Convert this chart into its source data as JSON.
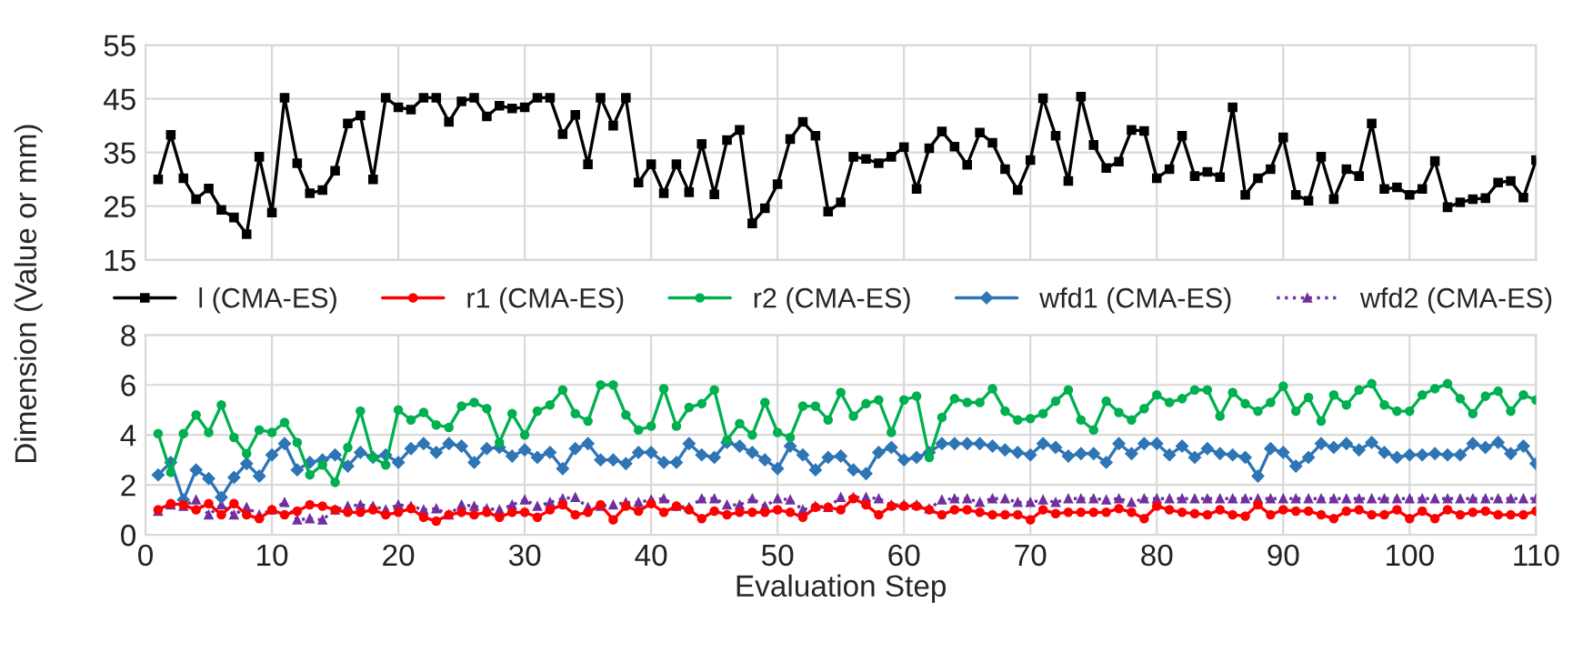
{
  "chart_data": [
    {
      "type": "line",
      "xlim": [
        0,
        110
      ],
      "xticks": [
        0,
        10,
        20,
        30,
        40,
        50,
        60,
        70,
        80,
        90,
        100,
        110
      ],
      "ylim": [
        15,
        55
      ],
      "yticks": [
        15,
        25,
        35,
        45,
        55
      ],
      "grid": true,
      "tick_labels": "y",
      "legend": "bottom",
      "x": [
        1,
        2,
        3,
        4,
        5,
        6,
        7,
        8,
        9,
        10,
        11,
        12,
        13,
        14,
        15,
        16,
        17,
        18,
        19,
        20,
        21,
        22,
        23,
        24,
        25,
        26,
        27,
        28,
        29,
        30,
        31,
        32,
        33,
        34,
        35,
        36,
        37,
        38,
        39,
        40,
        41,
        42,
        43,
        44,
        45,
        46,
        47,
        48,
        49,
        50,
        51,
        52,
        53,
        54,
        55,
        56,
        57,
        58,
        59,
        60,
        61,
        62,
        63,
        64,
        65,
        66,
        67,
        68,
        69,
        70,
        71,
        72,
        73,
        74,
        75,
        76,
        77,
        78,
        79,
        80,
        81,
        82,
        83,
        84,
        85,
        86,
        87,
        88,
        89,
        90,
        91,
        92,
        93,
        94,
        95,
        96,
        97,
        98,
        99,
        100,
        101,
        102,
        103,
        104,
        105,
        106,
        107,
        108,
        109,
        110
      ],
      "series": [
        {
          "name": "l (CMA-ES)",
          "color": "#000000",
          "marker": "square",
          "line_style": "solid",
          "values": [
            30,
            38.3,
            30.2,
            26.3,
            28.3,
            24.3,
            22.9,
            19.8,
            34.2,
            23.8,
            45.2,
            33,
            27.4,
            28,
            31.6,
            40.4,
            41.9,
            30,
            45.2,
            43.4,
            43,
            45.2,
            45.2,
            40.7,
            44.5,
            45.2,
            41.7,
            43.7,
            43.2,
            43.4,
            45.2,
            45.2,
            38.4,
            42,
            32.8,
            45.2,
            40,
            45.2,
            29.4,
            32.8,
            27.4,
            32.8,
            27.6,
            36.6,
            27.2,
            37.3,
            39.2,
            21.8,
            24.6,
            29.1,
            37.5,
            40.7,
            38.1,
            24,
            25.7,
            34.2,
            33.8,
            33,
            34.2,
            36,
            28.2,
            35.8,
            38.9,
            36.1,
            32.7,
            38.7,
            36.8,
            31.9,
            28,
            33.6,
            45.1,
            38.1,
            29.7,
            45.4,
            36.4,
            32.1,
            33.3,
            39.2,
            39,
            30.2,
            31.9,
            38.1,
            30.6,
            31.4,
            30.4,
            43.4,
            27.1,
            30.2,
            31.9,
            37.8,
            27.1,
            26,
            34.2,
            26.3,
            31.9,
            30.6,
            40.4,
            28.2,
            28.5,
            27.1,
            28.2,
            33.4,
            24.8,
            25.7,
            26.3,
            26.5,
            29.4,
            29.7,
            26.6,
            33.6
          ]
        }
      ]
    },
    {
      "type": "line",
      "xlabel": "Evaluation Step",
      "ylabel": "Dimension (Value or mm)",
      "xlim": [
        0,
        110
      ],
      "xticks": [
        0,
        10,
        20,
        30,
        40,
        50,
        60,
        70,
        80,
        90,
        100,
        110
      ],
      "ylim": [
        0,
        8
      ],
      "yticks": [
        0,
        2,
        4,
        6,
        8
      ],
      "grid": true,
      "legend": "top",
      "x": [
        1,
        2,
        3,
        4,
        5,
        6,
        7,
        8,
        9,
        10,
        11,
        12,
        13,
        14,
        15,
        16,
        17,
        18,
        19,
        20,
        21,
        22,
        23,
        24,
        25,
        26,
        27,
        28,
        29,
        30,
        31,
        32,
        33,
        34,
        35,
        36,
        37,
        38,
        39,
        40,
        41,
        42,
        43,
        44,
        45,
        46,
        47,
        48,
        49,
        50,
        51,
        52,
        53,
        54,
        55,
        56,
        57,
        58,
        59,
        60,
        61,
        62,
        63,
        64,
        65,
        66,
        67,
        68,
        69,
        70,
        71,
        72,
        73,
        74,
        75,
        76,
        77,
        78,
        79,
        80,
        81,
        82,
        83,
        84,
        85,
        86,
        87,
        88,
        89,
        90,
        91,
        92,
        93,
        94,
        95,
        96,
        97,
        98,
        99,
        100,
        101,
        102,
        103,
        104,
        105,
        106,
        107,
        108,
        109,
        110
      ],
      "series": [
        {
          "name": "r1 (CMA-ES)",
          "color": "#ff0000",
          "marker": "circle",
          "line_style": "solid",
          "values": [
            1.0,
            1.25,
            1.2,
            1.0,
            1.25,
            0.8,
            1.25,
            0.8,
            0.65,
            1.0,
            0.8,
            0.95,
            1.2,
            1.15,
            1.0,
            0.9,
            0.9,
            1.0,
            0.8,
            0.9,
            1.05,
            0.7,
            0.55,
            0.8,
            0.9,
            0.8,
            0.9,
            0.7,
            0.9,
            0.9,
            0.7,
            1.0,
            1.2,
            0.8,
            0.9,
            1.2,
            0.6,
            1.15,
            0.95,
            1.25,
            0.9,
            1.15,
            1.0,
            0.65,
            0.95,
            0.8,
            0.9,
            0.9,
            0.9,
            1.0,
            0.9,
            0.7,
            1.1,
            1.1,
            1.0,
            1.45,
            1.2,
            0.8,
            1.15,
            1.15,
            1.15,
            1.0,
            0.8,
            1.0,
            1.0,
            0.9,
            0.8,
            0.8,
            0.8,
            0.6,
            1.0,
            0.85,
            0.9,
            0.9,
            0.9,
            0.9,
            1.05,
            0.9,
            0.65,
            1.15,
            1.0,
            0.9,
            0.85,
            0.8,
            1.0,
            0.8,
            0.75,
            1.2,
            0.8,
            1.0,
            0.95,
            0.95,
            0.8,
            0.65,
            0.95,
            1.0,
            0.8,
            0.8,
            1.0,
            0.65,
            0.95,
            0.65,
            1.0,
            0.8,
            0.9,
            0.95,
            0.8,
            0.8,
            0.8,
            0.95
          ]
        },
        {
          "name": "r2 (CMA-ES)",
          "color": "#00b050",
          "marker": "circle",
          "line_style": "solid",
          "values": [
            4.05,
            2.5,
            4.05,
            4.8,
            4.1,
            5.2,
            3.9,
            3.25,
            4.2,
            4.1,
            4.5,
            3.7,
            2.4,
            2.8,
            2.1,
            3.5,
            4.95,
            3.1,
            2.8,
            5,
            4.6,
            4.9,
            4.4,
            4.3,
            5.15,
            5.3,
            5.05,
            3.7,
            4.85,
            4,
            4.95,
            5.2,
            5.8,
            4.85,
            4.55,
            6,
            6,
            4.8,
            4.2,
            4.35,
            5.85,
            4.35,
            5.1,
            5.25,
            5.8,
            3.8,
            4.45,
            4,
            5.3,
            4.1,
            3.9,
            5.15,
            5.15,
            4.6,
            5.7,
            4.75,
            5.25,
            5.4,
            4.1,
            5.4,
            5.55,
            3.1,
            4.7,
            5.45,
            5.3,
            5.3,
            5.85,
            4.95,
            4.6,
            4.65,
            4.85,
            5.35,
            5.8,
            4.6,
            4.2,
            5.35,
            4.9,
            4.6,
            5.05,
            5.6,
            5.3,
            5.45,
            5.8,
            5.8,
            4.75,
            5.7,
            5.25,
            4.95,
            5.3,
            5.95,
            4.95,
            5.5,
            4.55,
            5.6,
            5.2,
            5.8,
            6.05,
            5.2,
            4.95,
            4.95,
            5.6,
            5.85,
            6.05,
            5.45,
            4.85,
            5.55,
            5.75,
            4.95,
            5.6,
            5.4
          ]
        },
        {
          "name": "wfd1 (CMA-ES)",
          "color": "#2e75b6",
          "marker": "diamond",
          "line_style": "solid",
          "values": [
            2.4,
            2.9,
            1.4,
            2.6,
            2.25,
            1.5,
            2.3,
            2.85,
            2.35,
            3.2,
            3.65,
            2.6,
            2.9,
            3,
            3.2,
            2.75,
            3.3,
            3.1,
            3.2,
            2.9,
            3.45,
            3.65,
            3.3,
            3.65,
            3.55,
            2.9,
            3.45,
            3.5,
            3.15,
            3.4,
            3.1,
            3.3,
            2.65,
            3.45,
            3.65,
            3,
            3,
            2.85,
            3.3,
            3.3,
            2.9,
            2.9,
            3.65,
            3.2,
            3.1,
            3.7,
            3.55,
            3.3,
            3,
            2.65,
            3.55,
            3.2,
            2.6,
            3.1,
            3.15,
            2.6,
            2.45,
            3.3,
            3.5,
            3,
            3.1,
            3.3,
            3.65,
            3.65,
            3.65,
            3.65,
            3.55,
            3.4,
            3.3,
            3.2,
            3.65,
            3.5,
            3.15,
            3.25,
            3.25,
            2.9,
            3.65,
            3.25,
            3.65,
            3.65,
            3.2,
            3.55,
            3.1,
            3.45,
            3.25,
            3.2,
            3.1,
            2.35,
            3.45,
            3.3,
            2.75,
            3.1,
            3.65,
            3.5,
            3.65,
            3.4,
            3.7,
            3.3,
            3.1,
            3.2,
            3.2,
            3.25,
            3.2,
            3.2,
            3.65,
            3.5,
            3.7,
            3.25,
            3.55,
            2.85
          ]
        },
        {
          "name": "wfd2 (CMA-ES)",
          "color": "#7030a0",
          "marker": "triangle",
          "line_style": "dotted",
          "values": [
            0.95,
            1.2,
            1.15,
            1.4,
            0.8,
            1.2,
            0.8,
            1.1,
            0.8,
            1.0,
            1.3,
            0.6,
            0.65,
            0.6,
            1.0,
            1.15,
            1.2,
            1.15,
            1.0,
            1.2,
            1.15,
            1.0,
            1.05,
            0.8,
            1.2,
            1.15,
            1.05,
            1.0,
            1.2,
            1.4,
            1.15,
            1.3,
            1.45,
            1.5,
            1.1,
            1.15,
            1.2,
            1.3,
            1.3,
            1.4,
            1.45,
            1.15,
            1.1,
            1.45,
            1.45,
            1.2,
            1.2,
            1.45,
            1.15,
            1.45,
            1.4,
            1.0,
            1.15,
            1.1,
            1.5,
            1.5,
            1.5,
            1.45,
            1.2,
            1.2,
            1.2,
            1.05,
            1.4,
            1.45,
            1.45,
            1.3,
            1.45,
            1.45,
            1.3,
            1.3,
            1.4,
            1.3,
            1.45,
            1.45,
            1.45,
            1.4,
            1.45,
            1.3,
            1.45,
            1.45,
            1.45,
            1.45,
            1.45,
            1.45,
            1.45,
            1.45,
            1.45,
            1.45,
            1.45,
            1.45,
            1.45,
            1.45,
            1.45,
            1.45,
            1.45,
            1.45,
            1.45,
            1.45,
            1.45,
            1.45,
            1.45,
            1.45,
            1.45,
            1.45,
            1.45,
            1.45,
            1.45,
            1.45,
            1.45,
            1.45
          ]
        }
      ]
    }
  ]
}
